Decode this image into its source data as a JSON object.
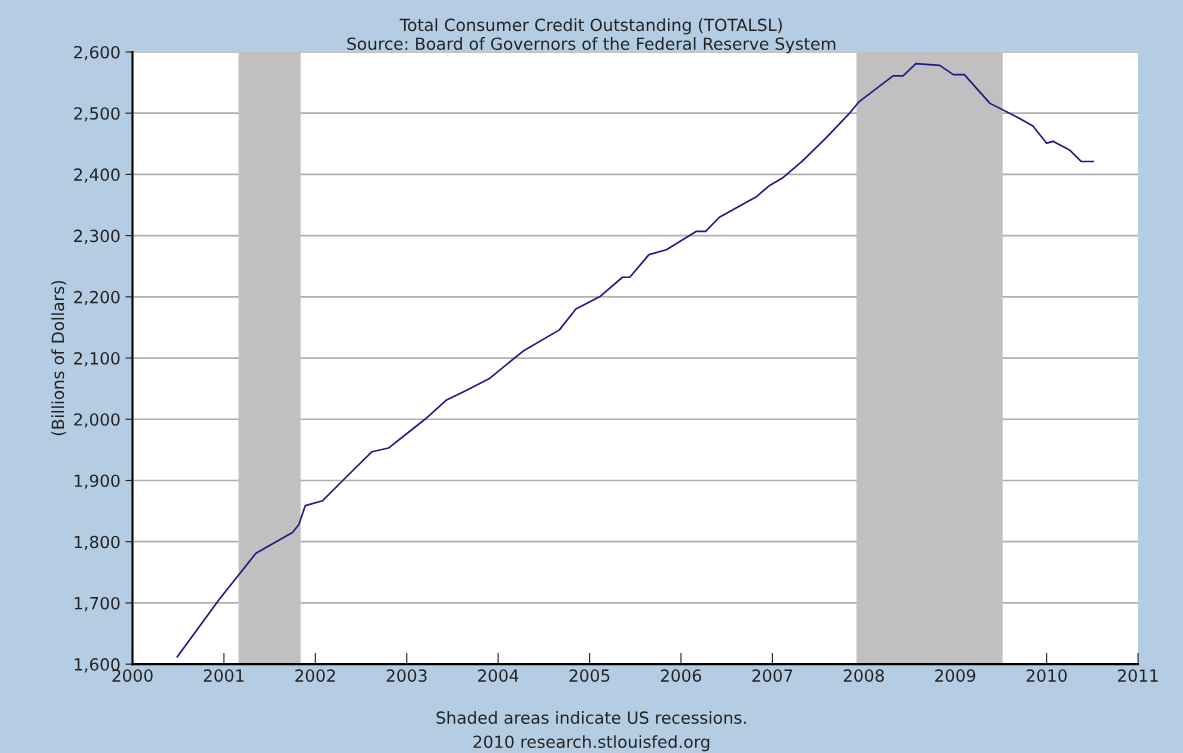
{
  "chart_data": {
    "type": "line",
    "title": "Total Consumer Credit Outstanding (TOTALSL)",
    "subtitle": "Source: Board of Governors of the Federal Reserve System",
    "ylabel": "(Billions of Dollars)",
    "annotations": [
      "Shaded areas indicate US recessions.",
      "2010 research.stlouisfed.org"
    ],
    "series": [
      {
        "color": "#1c1c8a",
        "x": [
          2000.49,
          2000.95,
          2001.35,
          2001.75,
          2001.82,
          2001.89,
          2002.08,
          2002.3,
          2002.62,
          2002.8,
          2003.03,
          2003.2,
          2003.43,
          2003.65,
          2003.9,
          2004.27,
          2004.67,
          2004.85,
          2005.11,
          2005.36,
          2005.44,
          2005.65,
          2005.84,
          2006.17,
          2006.27,
          2006.42,
          2006.82,
          2006.97,
          2007.11,
          2007.33,
          2007.59,
          2007.85,
          2007.95,
          2008.32,
          2008.43,
          2008.57,
          2008.83,
          2008.98,
          2009.1,
          2009.38,
          2009.67,
          2009.85,
          2010.0,
          2010.07,
          2010.25,
          2010.38,
          2010.51
        ],
        "values": [
          1612,
          1706,
          1781,
          1815,
          1828,
          1859,
          1867,
          1900,
          1947,
          1953,
          1980,
          2000,
          2031,
          2047,
          2066,
          2111,
          2146,
          2180,
          2200,
          2232,
          2232,
          2269,
          2277,
          2307,
          2307,
          2330,
          2363,
          2382,
          2394,
          2422,
          2460,
          2501,
          2519,
          2561,
          2561,
          2581,
          2578,
          2563,
          2563,
          2516,
          2494,
          2479,
          2451,
          2454,
          2440,
          2421,
          2421
        ]
      }
    ],
    "bands": [
      {
        "axis": "x",
        "from": 2001.16,
        "to": 2001.84,
        "color": "#c0c0c0"
      },
      {
        "axis": "x",
        "from": 2007.92,
        "to": 2009.52,
        "color": "#c0c0c0"
      }
    ],
    "xlim": [
      2000,
      2011
    ],
    "xticks": [
      2000,
      2001,
      2002,
      2003,
      2004,
      2005,
      2006,
      2007,
      2008,
      2009,
      2010,
      2011
    ],
    "ylim": [
      1600,
      2600
    ],
    "yticks": [
      {
        "value": 1600,
        "label": "1,600"
      },
      {
        "value": 1700,
        "label": "1,700"
      },
      {
        "value": 1800,
        "label": "1,800"
      },
      {
        "value": 1900,
        "label": "1,900"
      },
      {
        "value": 2000,
        "label": "2,000"
      },
      {
        "value": 2100,
        "label": "2,100"
      },
      {
        "value": 2200,
        "label": "2,200"
      },
      {
        "value": 2300,
        "label": "2,300"
      },
      {
        "value": 2400,
        "label": "2,400"
      },
      {
        "value": 2500,
        "label": "2,500"
      },
      {
        "value": 2600,
        "label": "2,600"
      }
    ],
    "grid": "y"
  }
}
